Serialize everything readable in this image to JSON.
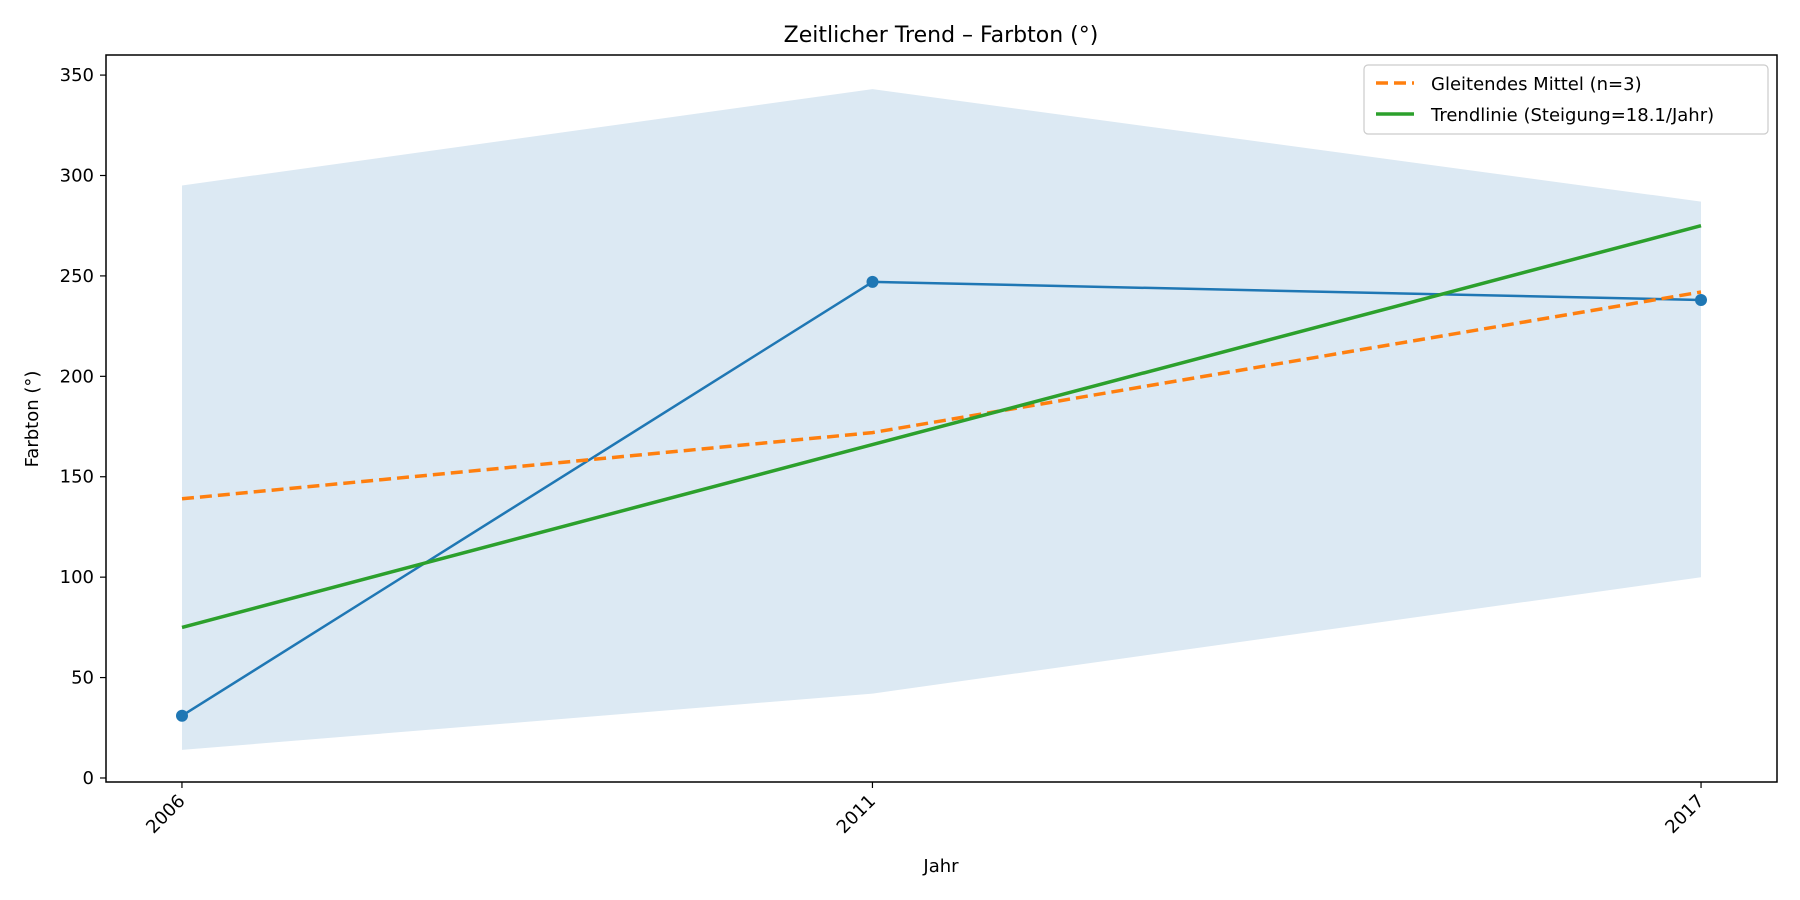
{
  "chart_data": {
    "type": "line",
    "title": "Zeitlicher Trend – Farbton (°)",
    "xlabel": "Jahr",
    "ylabel": "Farbton (°)",
    "x": [
      2006,
      2011,
      2017
    ],
    "x_tick_labels": [
      "2006",
      "2011",
      "2017"
    ],
    "x_tick_rotation": -45,
    "xlim": [
      2005.45,
      2017.55
    ],
    "ylim": [
      -2,
      360
    ],
    "y_ticks": [
      0,
      50,
      100,
      150,
      200,
      250,
      300,
      350
    ],
    "grid": false,
    "legend_position": "top-right",
    "band": {
      "lower": [
        14,
        42,
        100
      ],
      "upper": [
        295,
        343,
        287
      ],
      "color": "#dce9f3"
    },
    "series": [
      {
        "name": "",
        "values": [
          31,
          247,
          238
        ],
        "color": "#1f77b4",
        "style": "solid",
        "markers": true
      },
      {
        "name": "Gleitendes Mittel (n=3)",
        "values": [
          139,
          172,
          242
        ],
        "color": "#ff7f0e",
        "style": "dashed",
        "markers": false
      },
      {
        "name": "Trendlinie (Steigung=18.1/Jahr)",
        "values": [
          75,
          166,
          275
        ],
        "color": "#2ca02c",
        "style": "solid",
        "markers": false
      }
    ]
  }
}
